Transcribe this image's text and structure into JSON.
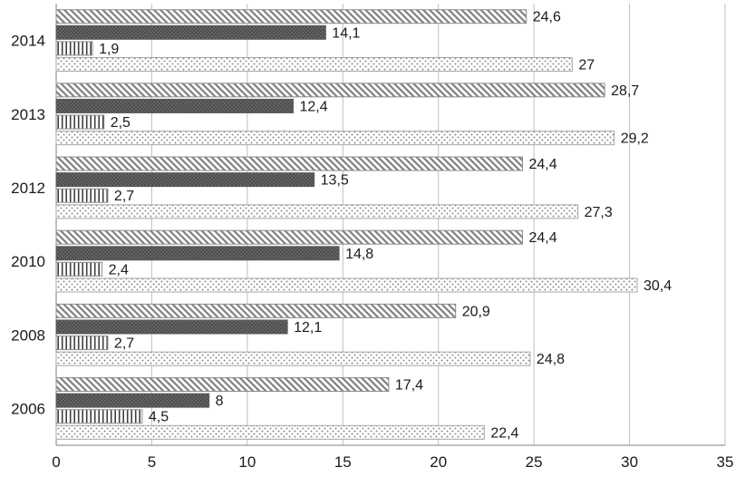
{
  "chart_data": {
    "type": "bar",
    "orientation": "horizontal",
    "categories": [
      "2014",
      "2013",
      "2012",
      "2010",
      "2008",
      "2006"
    ],
    "series": [
      {
        "name": "diagonal-hatch-series",
        "pattern": "diagonal-hatch",
        "values": [
          24.6,
          28.7,
          24.4,
          24.4,
          20.9,
          17.4
        ],
        "labels": [
          "24,6",
          "28,7",
          "24,4",
          "24,4",
          "20,9",
          "17,4"
        ]
      },
      {
        "name": "dark-crosshatch-series",
        "pattern": "dark-crosshatch",
        "values": [
          14.1,
          12.4,
          13.5,
          14.8,
          12.1,
          8
        ],
        "labels": [
          "14,1",
          "12,4",
          "13,5",
          "14,8",
          "12,1",
          "8"
        ]
      },
      {
        "name": "vertical-lines-series",
        "pattern": "vertical-lines",
        "values": [
          1.9,
          2.5,
          2.7,
          2.4,
          2.7,
          4.5
        ],
        "labels": [
          "1,9",
          "2,5",
          "2,7",
          "2,4",
          "2,7",
          "4,5"
        ]
      },
      {
        "name": "dotted-series",
        "pattern": "dotted",
        "values": [
          27,
          29.2,
          27.3,
          30.4,
          24.8,
          22.4
        ],
        "labels": [
          "27",
          "29,2",
          "27,3",
          "30,4",
          "24,8",
          "22,4"
        ]
      }
    ],
    "x_axis": {
      "min": 0,
      "max": 35,
      "tick_step": 5,
      "tick_labels": [
        "0",
        "5",
        "10",
        "15",
        "20",
        "25",
        "30",
        "35"
      ]
    },
    "grid": true,
    "legend": false
  },
  "colors": {
    "grid": "#bfbfbf",
    "axis": "#7f7f7f",
    "text": "#1a1a1a",
    "hatch_gray": "#7f7f7f",
    "dark_bar": "#595959",
    "dots_gray": "#8c8c8c"
  }
}
